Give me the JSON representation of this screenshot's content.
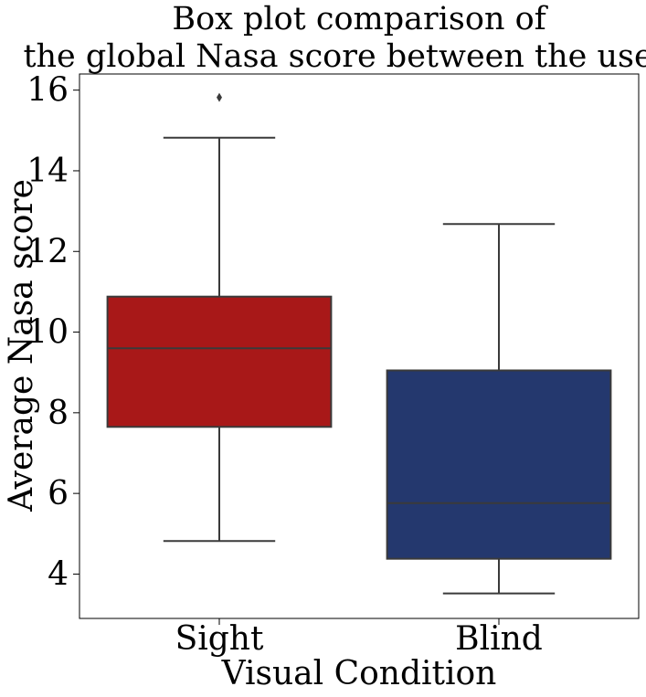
{
  "chart_data": {
    "type": "box",
    "title_lines": [
      "Box plot comparison of",
      "the global Nasa score between the users."
    ],
    "xlabel": "Visual Condition",
    "ylabel": "Average Nasa score",
    "ylim": [
      2.9,
      16.4
    ],
    "yticks": [
      4,
      6,
      8,
      10,
      12,
      14,
      16
    ],
    "categories": [
      "Sight",
      "Blind"
    ],
    "boxes": [
      {
        "category": "Sight",
        "color": "#a81818",
        "whisker_low": 4.82,
        "q1": 7.65,
        "median": 9.6,
        "q3": 10.88,
        "whisker_high": 14.82,
        "outliers": [
          15.82
        ]
      },
      {
        "category": "Blind",
        "color": "#24386e",
        "whisker_low": 3.52,
        "q1": 4.38,
        "median": 5.76,
        "q3": 9.05,
        "whisker_high": 12.68,
        "outliers": []
      }
    ],
    "grid": false,
    "legend": "none"
  }
}
